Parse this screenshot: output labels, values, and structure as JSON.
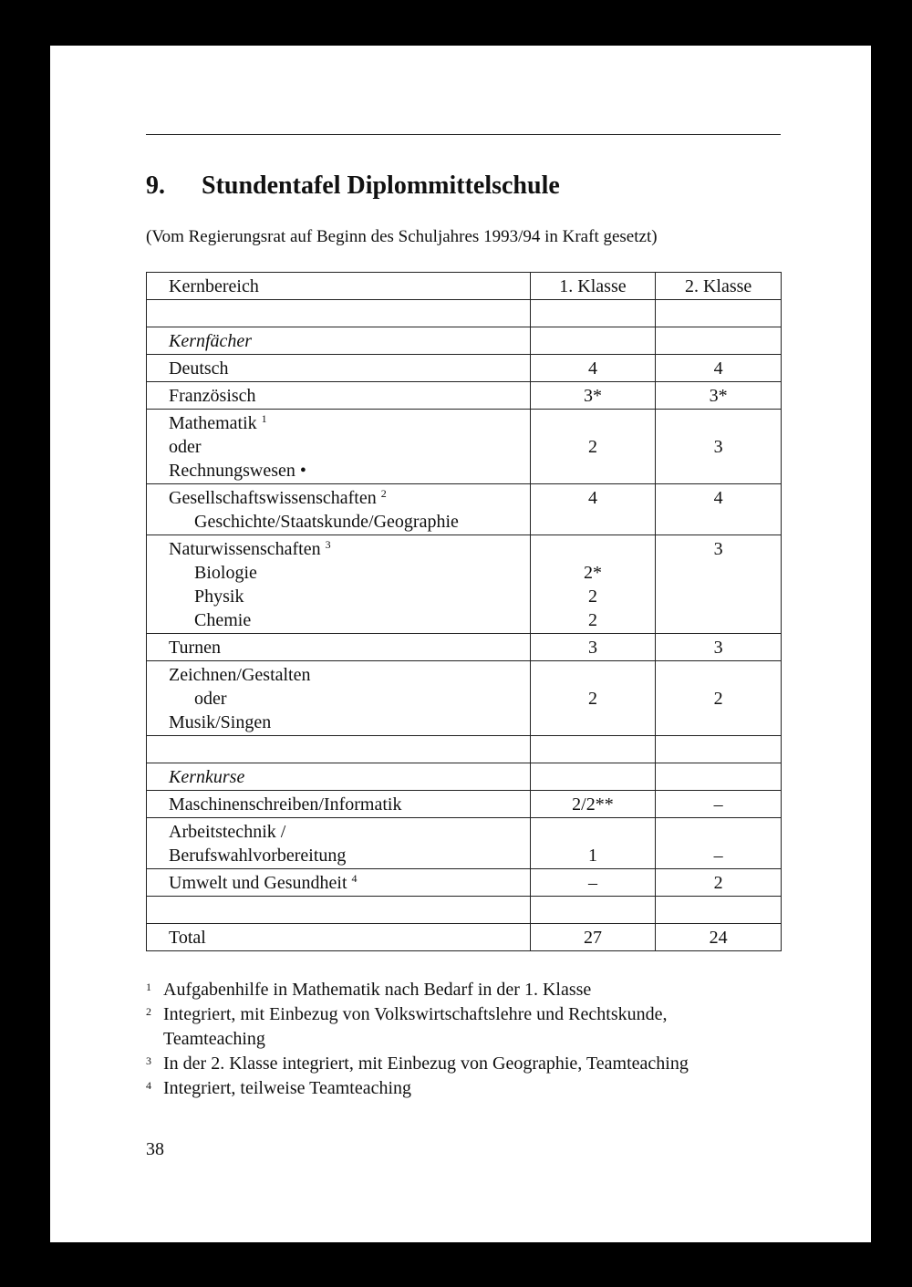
{
  "heading": {
    "number": "9.",
    "title": "Stundentafel Diplommittelschule"
  },
  "subtitle": "(Vom Regierungsrat auf Beginn des Schuljahres 1993/94 in Kraft gesetzt)",
  "table": {
    "headers": [
      "Kernbereich",
      "1. Klasse",
      "2. Klasse"
    ],
    "rows": [
      {
        "label": [
          {
            "t": ""
          }
        ],
        "k1": [
          ""
        ],
        "k2": [
          ""
        ]
      },
      {
        "label": [
          {
            "t": "Kernfächer",
            "italic": true
          }
        ],
        "k1": [
          ""
        ],
        "k2": [
          ""
        ]
      },
      {
        "label": [
          {
            "t": "Deutsch"
          }
        ],
        "k1": [
          "4"
        ],
        "k2": [
          "4"
        ]
      },
      {
        "label": [
          {
            "t": "Französisch"
          }
        ],
        "k1": [
          "3*"
        ],
        "k2": [
          "3*"
        ]
      },
      {
        "label": [
          {
            "t": "Mathematik",
            "sup": "1"
          },
          {
            "t": "oder"
          },
          {
            "t": "Rechnungswesen •"
          }
        ],
        "k1": [
          "",
          "2",
          ""
        ],
        "k2": [
          "",
          "3",
          ""
        ]
      },
      {
        "label": [
          {
            "t": "Gesellschaftswissenschaften",
            "sup": "2"
          },
          {
            "t": "Geschichte/Staatskunde/Geographie",
            "level": 1
          }
        ],
        "k1": [
          "4",
          ""
        ],
        "k2": [
          "4",
          ""
        ]
      },
      {
        "label": [
          {
            "t": "Naturwissenschaften",
            "sup": "3"
          },
          {
            "t": "Biologie",
            "level": 1
          },
          {
            "t": "Physik",
            "level": 1
          },
          {
            "t": "Chemie",
            "level": 1
          }
        ],
        "k1": [
          "",
          "2*",
          "2",
          "2"
        ],
        "k2": [
          "3",
          "",
          "",
          ""
        ]
      },
      {
        "label": [
          {
            "t": "Turnen"
          }
        ],
        "k1": [
          "3"
        ],
        "k2": [
          "3"
        ]
      },
      {
        "label": [
          {
            "t": "Zeichnen/Gestalten"
          },
          {
            "t": "oder",
            "level": 1
          },
          {
            "t": "Musik/Singen"
          }
        ],
        "k1": [
          "",
          "2",
          ""
        ],
        "k2": [
          "",
          "2",
          ""
        ]
      },
      {
        "label": [
          {
            "t": ""
          }
        ],
        "k1": [
          ""
        ],
        "k2": [
          ""
        ]
      },
      {
        "label": [
          {
            "t": "Kernkurse",
            "italic": true
          }
        ],
        "k1": [
          ""
        ],
        "k2": [
          ""
        ]
      },
      {
        "label": [
          {
            "t": "Maschinenschreiben/Informatik"
          }
        ],
        "k1": [
          "2/2**"
        ],
        "k2": [
          "–"
        ]
      },
      {
        "label": [
          {
            "t": "Arbeitstechnik /"
          },
          {
            "t": "Berufswahlvorbereitung"
          }
        ],
        "k1": [
          "",
          "1"
        ],
        "k2": [
          "",
          "–"
        ]
      },
      {
        "label": [
          {
            "t": "Umwelt und Gesundheit",
            "sup": "4"
          }
        ],
        "k1": [
          "–"
        ],
        "k2": [
          "2"
        ]
      },
      {
        "label": [
          {
            "t": ""
          }
        ],
        "k1": [
          ""
        ],
        "k2": [
          ""
        ]
      },
      {
        "label": [
          {
            "t": "Total"
          }
        ],
        "k1": [
          "27"
        ],
        "k2": [
          "24"
        ]
      }
    ]
  },
  "footnotes": [
    {
      "mark": "1",
      "lines": [
        "Aufgabenhilfe in Mathematik nach Bedarf in der 1. Klasse"
      ]
    },
    {
      "mark": "2",
      "lines": [
        "Integriert, mit Einbezug von Volkswirtschaftslehre und Rechtskunde,",
        "Teamteaching"
      ]
    },
    {
      "mark": "3",
      "lines": [
        "In der 2. Klasse integriert, mit Einbezug von Geographie, Teamteaching"
      ]
    },
    {
      "mark": "4",
      "lines": [
        "Integriert, teilweise Teamteaching"
      ]
    }
  ],
  "page_number": "38"
}
